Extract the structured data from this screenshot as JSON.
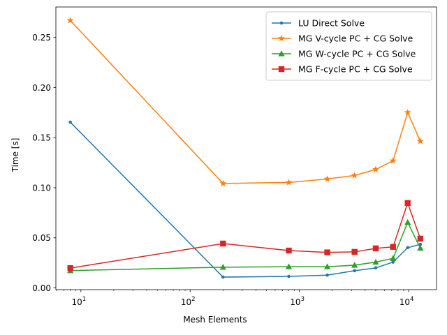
{
  "chart_data": {
    "type": "line",
    "title": "",
    "xlabel": "Mesh Elements",
    "ylabel": "Time [s]",
    "x_scale": "log",
    "xlim": [
      5.9,
      18000
    ],
    "ylim": [
      -0.0017,
      0.2805
    ],
    "grid": false,
    "legend_position": "top-right",
    "x_ticks": [
      {
        "value": 10,
        "base": "10",
        "exp": "1"
      },
      {
        "value": 100,
        "base": "10",
        "exp": "2"
      },
      {
        "value": 1000,
        "base": "10",
        "exp": "3"
      },
      {
        "value": 10000,
        "base": "10",
        "exp": "4"
      }
    ],
    "y_ticks": [
      {
        "value": 0.0,
        "label": "0.00"
      },
      {
        "value": 0.05,
        "label": "0.05"
      },
      {
        "value": 0.1,
        "label": "0.10"
      },
      {
        "value": 0.15,
        "label": "0.15"
      },
      {
        "value": 0.2,
        "label": "0.20"
      },
      {
        "value": 0.25,
        "label": "0.25"
      }
    ],
    "x": [
      8,
      200,
      800,
      1800,
      3200,
      5000,
      7200,
      9800,
      12800
    ],
    "series": [
      {
        "name": "LU Direct Solve",
        "color": "#1f77b4",
        "marker": "dot",
        "values": [
          0.1655,
          0.0108,
          0.0115,
          0.0128,
          0.0172,
          0.02,
          0.0258,
          0.0402,
          0.0435
        ]
      },
      {
        "name": "MG V-cycle PC + CG Solve",
        "color": "#ff7f0e",
        "marker": "star",
        "values": [
          0.267,
          0.1043,
          0.1053,
          0.1088,
          0.1123,
          0.1183,
          0.127,
          0.1752,
          0.1465
        ]
      },
      {
        "name": "MG W-cycle PC + CG Solve",
        "color": "#2ca02c",
        "marker": "triangle",
        "values": [
          0.0173,
          0.0207,
          0.0212,
          0.0212,
          0.0227,
          0.0258,
          0.0295,
          0.0655,
          0.0397
        ]
      },
      {
        "name": "MG F-cycle PC + CG Solve",
        "color": "#d62728",
        "marker": "square",
        "values": [
          0.0198,
          0.0443,
          0.0373,
          0.0355,
          0.036,
          0.0395,
          0.041,
          0.0848,
          0.0492
        ]
      }
    ]
  }
}
